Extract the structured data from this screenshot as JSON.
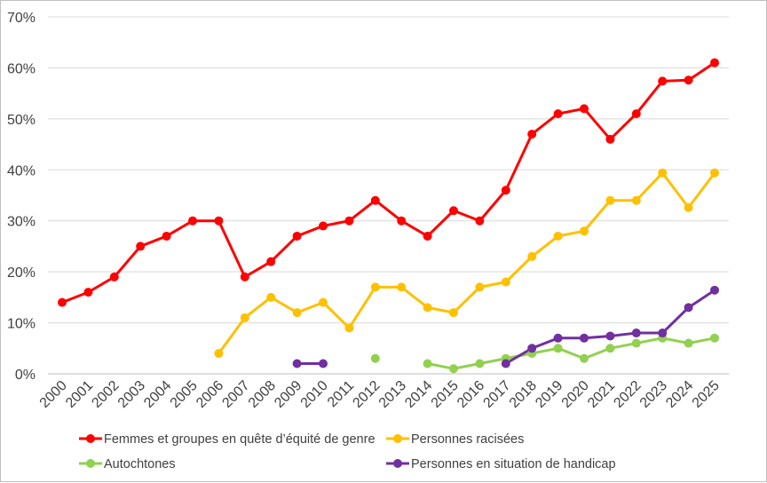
{
  "chart_data": {
    "type": "line",
    "title": "",
    "xlabel": "",
    "ylabel": "",
    "x": [
      "2000",
      "2001",
      "2002",
      "2003",
      "2004",
      "2005",
      "2006",
      "2007",
      "2008",
      "2009",
      "2010",
      "2011",
      "2012",
      "2013",
      "2014",
      "2015",
      "2016",
      "2017",
      "2018",
      "2019",
      "2020",
      "2021",
      "2022",
      "2023",
      "2024",
      "2025"
    ],
    "ylim": [
      0,
      70
    ],
    "yticks": [
      "0%",
      "10%",
      "20%",
      "30%",
      "40%",
      "50%",
      "60%",
      "70%"
    ],
    "grid": "horizontal",
    "legend": "bottom",
    "series": [
      {
        "name": "Femmes et groupes en quête d’équité de genre",
        "color": "#ff0000",
        "values": [
          14,
          16,
          19,
          25,
          27,
          30,
          30,
          19,
          22,
          27,
          29,
          30,
          34,
          30,
          27,
          32,
          30,
          36,
          47,
          51,
          52,
          46,
          51,
          57.4,
          57.6,
          61
        ]
      },
      {
        "name": "Personnes racisées",
        "color": "#ffc000",
        "values": [
          null,
          null,
          null,
          null,
          null,
          null,
          4,
          11,
          15,
          12,
          14,
          9,
          17,
          17,
          13,
          12,
          17,
          18,
          23,
          27,
          28,
          34,
          34,
          39.4,
          32.6,
          39.4
        ]
      },
      {
        "name": "Autochtones",
        "color": "#92d050",
        "values": [
          null,
          null,
          null,
          null,
          null,
          null,
          null,
          null,
          null,
          null,
          null,
          null,
          3,
          null,
          2,
          1,
          2,
          3,
          4,
          5,
          3,
          5,
          6,
          7,
          6,
          7
        ]
      },
      {
        "name": "Personnes en situation de handicap",
        "color": "#7030a0",
        "values": [
          null,
          null,
          null,
          null,
          null,
          null,
          null,
          null,
          null,
          2,
          2,
          null,
          null,
          null,
          null,
          null,
          null,
          2,
          5,
          7,
          7,
          7.4,
          8,
          8,
          13,
          16.4
        ]
      }
    ]
  }
}
